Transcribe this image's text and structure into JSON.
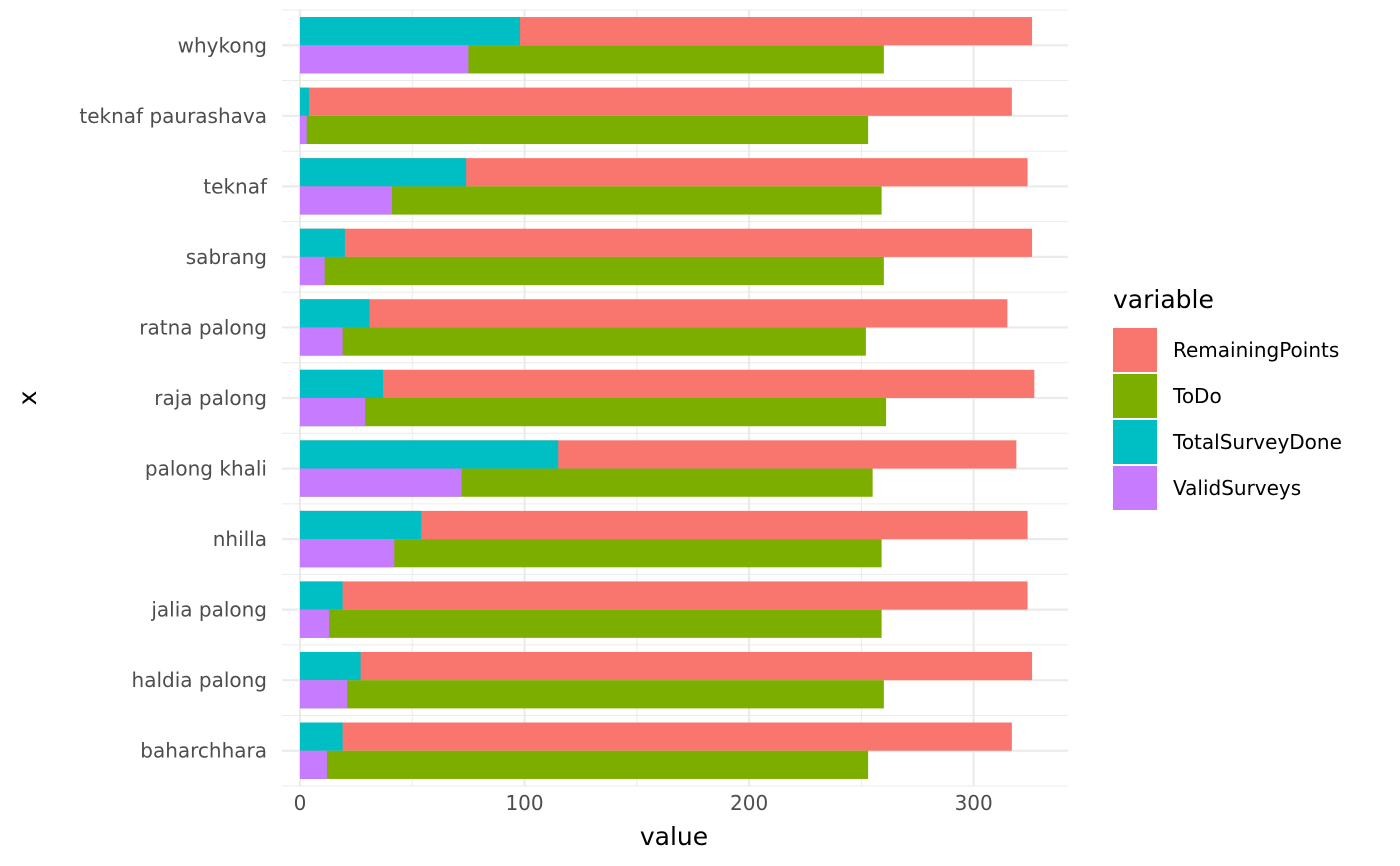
{
  "chart_data": {
    "type": "bar",
    "orientation": "horizontal",
    "title": "",
    "xlabel": "value",
    "ylabel": "x",
    "xlim": [
      -8,
      342
    ],
    "x_ticks": [
      0,
      100,
      200,
      300
    ],
    "grid": true,
    "legend": {
      "title": "variable",
      "position": "right"
    },
    "categories": [
      "baharchhara",
      "haldia palong",
      "jalia palong",
      "nhilla",
      "palong khali",
      "raja palong",
      "ratna palong",
      "sabrang",
      "teknaf",
      "teknaf paurashava",
      "whykong"
    ],
    "series": [
      {
        "name": "RemainingPoints",
        "color": "#F8766D",
        "row": "top",
        "values": [
          317,
          326,
          324,
          324,
          319,
          327,
          315,
          326,
          324,
          317,
          326
        ]
      },
      {
        "name": "ToDo",
        "color": "#7CAE00",
        "row": "bottom",
        "values": [
          253,
          260,
          259,
          259,
          255,
          261,
          252,
          260,
          259,
          253,
          260
        ]
      },
      {
        "name": "TotalSurveyDone",
        "color": "#00BFC4",
        "row": "top",
        "values": [
          19,
          27,
          19,
          54,
          115,
          37,
          31,
          20,
          74,
          4,
          98
        ]
      },
      {
        "name": "ValidSurveys",
        "color": "#C77CFF",
        "row": "bottom",
        "values": [
          12,
          21,
          13,
          42,
          72,
          29,
          19,
          11,
          41,
          3,
          75
        ]
      }
    ]
  }
}
